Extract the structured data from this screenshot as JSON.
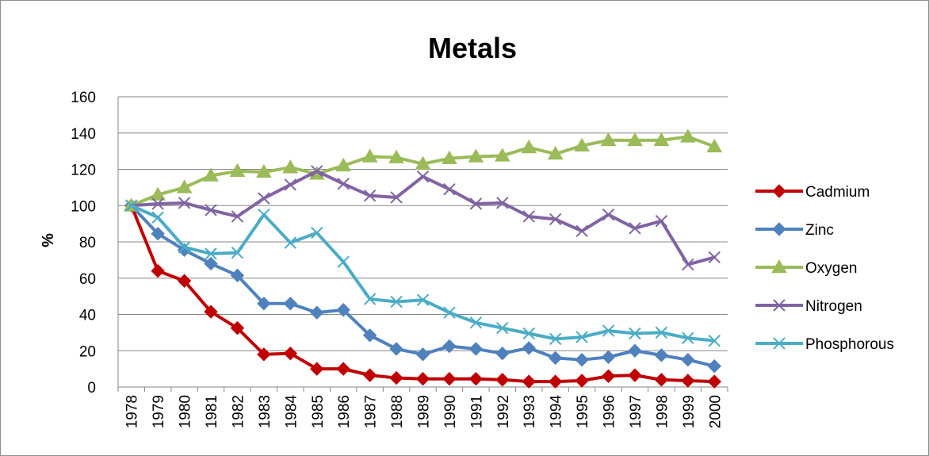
{
  "chart_data": {
    "type": "line",
    "title": "Metals",
    "xlabel": "",
    "ylabel": "%",
    "ylim": [
      0,
      160
    ],
    "yticks": [
      0,
      20,
      40,
      60,
      80,
      100,
      120,
      140,
      160
    ],
    "grid": true,
    "legend_position": "right",
    "x": [
      "1978",
      "1979",
      "1980",
      "1981",
      "1982",
      "1983",
      "1984",
      "1985",
      "1986",
      "1987",
      "1988",
      "1989",
      "1990",
      "1991",
      "1992",
      "1993",
      "1994",
      "1995",
      "1996",
      "1997",
      "1998",
      "1999",
      "2000"
    ],
    "series": [
      {
        "name": "Cadmium",
        "color": "#C00000",
        "marker": "diamond",
        "values": [
          100,
          64,
          58.5,
          41.5,
          32.5,
          18,
          18.5,
          10,
          10,
          6.5,
          5,
          4.5,
          4.5,
          4.5,
          4,
          3,
          3,
          3.5,
          6,
          6.5,
          4,
          3.5,
          3
        ]
      },
      {
        "name": "Zinc",
        "color": "#4F81BD",
        "marker": "diamond",
        "values": [
          100,
          84.5,
          75.5,
          68,
          61.5,
          46,
          46,
          41,
          42.5,
          28.5,
          21,
          18,
          22.5,
          21,
          18.5,
          21.5,
          16,
          15,
          16.5,
          20,
          17.5,
          15,
          11.5
        ]
      },
      {
        "name": "Oxygen",
        "color": "#9BBB59",
        "marker": "triangle",
        "values": [
          100,
          106,
          110,
          116.5,
          119,
          118.5,
          121,
          117.5,
          122,
          127,
          126.5,
          123,
          126,
          127,
          127.5,
          132,
          128.5,
          133,
          136,
          136,
          136,
          138,
          132.5
        ]
      },
      {
        "name": "Nitrogen",
        "color": "#8064A2",
        "marker": "x",
        "values": [
          100,
          101,
          101.5,
          97.5,
          94,
          104,
          111.5,
          119,
          112,
          105.5,
          104.5,
          116,
          109,
          101,
          101.5,
          94,
          92.5,
          86,
          95,
          87.5,
          91.5,
          67.5,
          71.5
        ]
      },
      {
        "name": "Phosphorous",
        "color": "#4BACC6",
        "marker": "x",
        "values": [
          100,
          93.5,
          77,
          73.5,
          74,
          95,
          79.5,
          85,
          69,
          48.5,
          47,
          48,
          41,
          35.5,
          32.5,
          29.5,
          26.5,
          27.5,
          31,
          29.5,
          30,
          27,
          25.5
        ]
      }
    ]
  }
}
